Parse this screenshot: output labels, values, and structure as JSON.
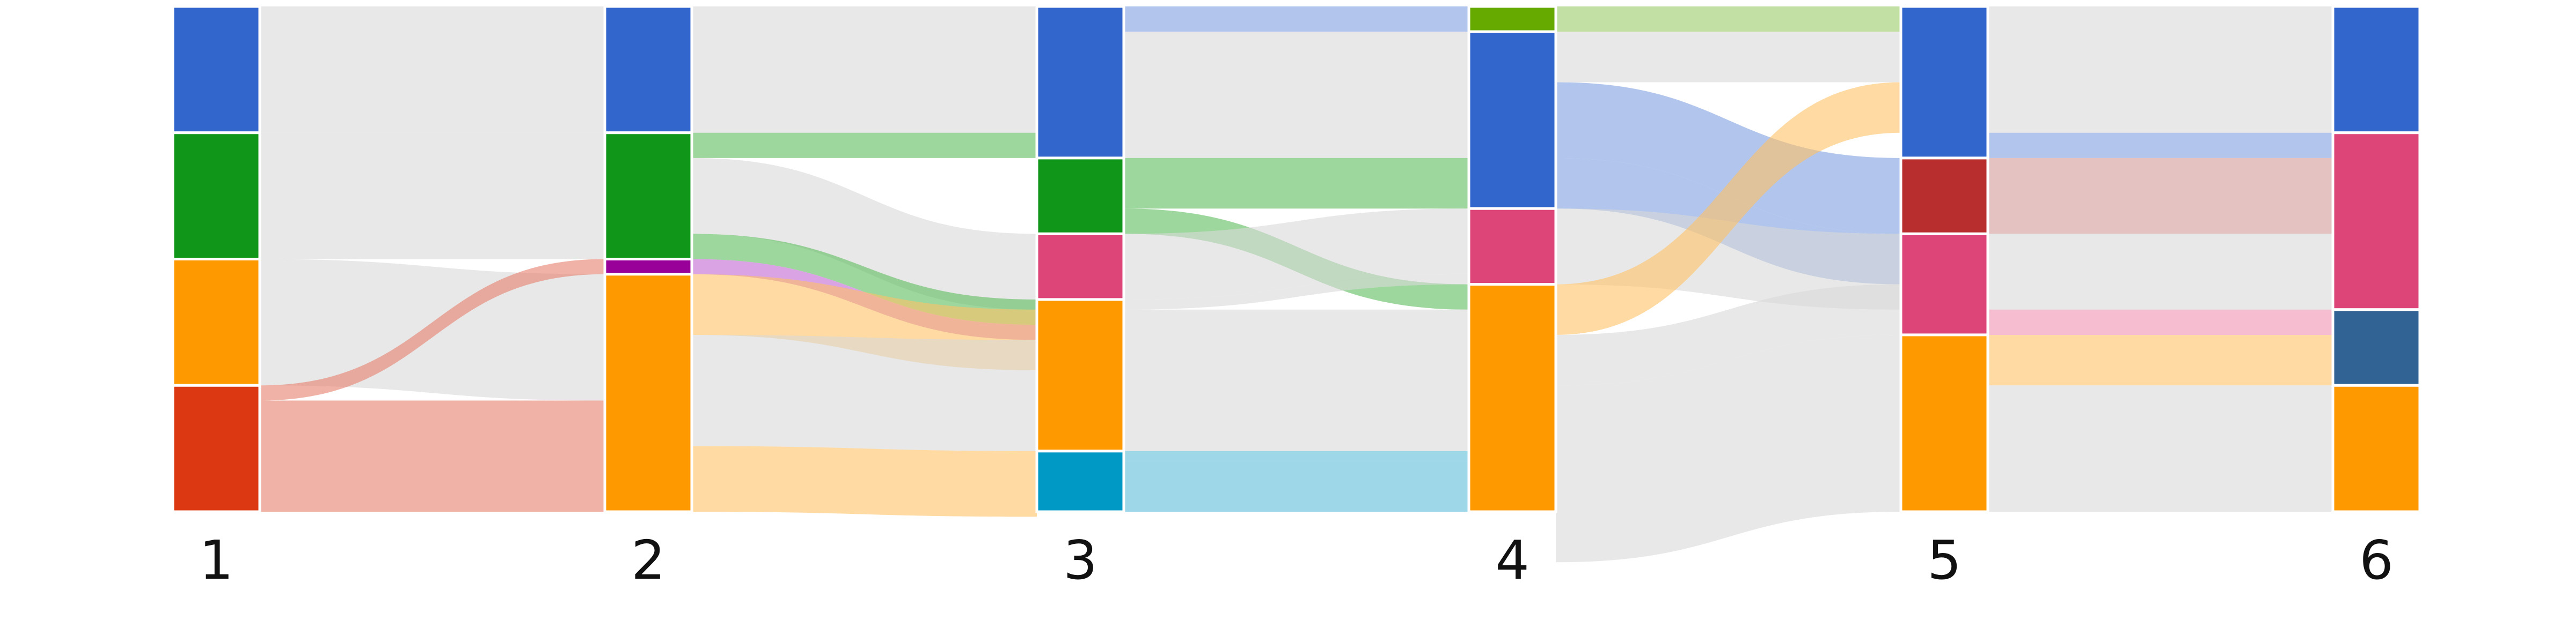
{
  "chart_data": {
    "type": "sankey",
    "title": "",
    "stages": [
      "1",
      "2",
      "3",
      "4",
      "5",
      "6"
    ],
    "grid": false,
    "legend": "none",
    "nodes": [
      [
        {
          "id": "s1n1",
          "color": "#3366cc",
          "value": 25
        },
        {
          "id": "s1n2",
          "color": "#109618",
          "value": 25
        },
        {
          "id": "s1n3",
          "color": "#ff9900",
          "value": 25
        },
        {
          "id": "s1n4",
          "color": "#dc3912",
          "value": 25
        }
      ],
      [
        {
          "id": "s2n1",
          "color": "#3366cc",
          "value": 25
        },
        {
          "id": "s2n2",
          "color": "#109618",
          "value": 25
        },
        {
          "id": "s2n3",
          "color": "#990099",
          "value": 3
        },
        {
          "id": "s2n4",
          "color": "#ff9900",
          "value": 47
        }
      ],
      [
        {
          "id": "s3n1",
          "color": "#3366cc",
          "value": 30
        },
        {
          "id": "s3n2",
          "color": "#109618",
          "value": 15
        },
        {
          "id": "s3n3",
          "color": "#dd4477",
          "value": 13
        },
        {
          "id": "s3n4",
          "color": "#ff9900",
          "value": 30
        },
        {
          "id": "s3n5",
          "color": "#0099c6",
          "value": 12
        }
      ],
      [
        {
          "id": "s4n1",
          "color": "#66aa00",
          "value": 5
        },
        {
          "id": "s4n2",
          "color": "#3366cc",
          "value": 35
        },
        {
          "id": "s4n3",
          "color": "#dd4477",
          "value": 15
        },
        {
          "id": "s4n4",
          "color": "#ff9900",
          "value": 45
        }
      ],
      [
        {
          "id": "s5n1",
          "color": "#3366cc",
          "value": 30
        },
        {
          "id": "s5n2",
          "color": "#b82e2e",
          "value": 15
        },
        {
          "id": "s5n3",
          "color": "#dd4477",
          "value": 20
        },
        {
          "id": "s5n4",
          "color": "#ff9900",
          "value": 35
        }
      ],
      [
        {
          "id": "s6n1",
          "color": "#3366cc",
          "value": 25
        },
        {
          "id": "s6n2",
          "color": "#dd4477",
          "value": 35
        },
        {
          "id": "s6n3",
          "color": "#316395",
          "value": 15
        },
        {
          "id": "s6n4",
          "color": "#ff9900",
          "value": 25
        }
      ]
    ],
    "links": [
      {
        "stage": 0,
        "from": 0,
        "to": 0,
        "value": 25,
        "color": "#d9d9d9"
      },
      {
        "stage": 0,
        "from": 1,
        "to": 1,
        "value": 25,
        "color": "#d9d9d9"
      },
      {
        "stage": 0,
        "from": 2,
        "to": 3,
        "value": 25,
        "color": "#d9d9d9"
      },
      {
        "stage": 0,
        "from": 3,
        "to": 2,
        "value": 3,
        "color": "#e67e6a"
      },
      {
        "stage": 0,
        "from": 3,
        "to": 3,
        "value": 22,
        "color": "#e67e6a"
      },
      {
        "stage": 1,
        "from": 0,
        "to": 0,
        "value": 25,
        "color": "#d9d9d9"
      },
      {
        "stage": 1,
        "from": 1,
        "to": 0,
        "value": 5,
        "color": "#5cbd5c"
      },
      {
        "stage": 1,
        "from": 1,
        "to": 2,
        "value": 15,
        "color": "#d9d9d9"
      },
      {
        "stage": 1,
        "from": 1,
        "to": 3,
        "value": 5,
        "color": "#5cbd5c"
      },
      {
        "stage": 1,
        "from": 2,
        "to": 3,
        "value": 3,
        "color": "#c266d1"
      },
      {
        "stage": 1,
        "from": 3,
        "to": 2,
        "value": 12,
        "color": "#ffc266"
      },
      {
        "stage": 1,
        "from": 3,
        "to": 3,
        "value": 22,
        "color": "#d9d9d9"
      },
      {
        "stage": 1,
        "from": 3,
        "to": 4,
        "value": 13,
        "color": "#ffc266"
      },
      {
        "stage": 2,
        "from": 0,
        "to": 0,
        "value": 5,
        "color": "#7f9fe0"
      },
      {
        "stage": 2,
        "from": 0,
        "to": 1,
        "value": 25,
        "color": "#d9d9d9"
      },
      {
        "stage": 2,
        "from": 1,
        "to": 1,
        "value": 10,
        "color": "#5cbd5c"
      },
      {
        "stage": 2,
        "from": 1,
        "to": 3,
        "value": 5,
        "color": "#5cbd5c"
      },
      {
        "stage": 2,
        "from": 2,
        "to": 2,
        "value": 13,
        "color": "#d9d9d9"
      },
      {
        "stage": 2,
        "from": 3,
        "to": 2,
        "value": 2,
        "color": "#d9d9d9"
      },
      {
        "stage": 2,
        "from": 3,
        "to": 3,
        "value": 28,
        "color": "#d9d9d9"
      },
      {
        "stage": 2,
        "from": 4,
        "to": 3,
        "value": 2,
        "color": "#5bbcd9"
      },
      {
        "stage": 2,
        "from": 4,
        "to": 3,
        "value": 10,
        "color": "#5bbcd9"
      },
      {
        "stage": 3,
        "from": 0,
        "to": 0,
        "value": 5,
        "color": "#99cc66"
      },
      {
        "stage": 3,
        "from": 1,
        "to": 0,
        "value": 10,
        "color": "#d9d9d9"
      },
      {
        "stage": 3,
        "from": 1,
        "to": 1,
        "value": 15,
        "color": "#7f9fe0"
      },
      {
        "stage": 3,
        "from": 1,
        "to": 2,
        "value": 10,
        "color": "#7f9fe0"
      },
      {
        "stage": 3,
        "from": 2,
        "to": 1,
        "value": 15,
        "color": "#d9d9d9"
      },
      {
        "stage": 3,
        "from": 3,
        "to": 0,
        "value": 10,
        "color": "#ffc266"
      },
      {
        "stage": 3,
        "from": 3,
        "to": 2,
        "value": 10,
        "color": "#d9d9d9"
      },
      {
        "stage": 3,
        "from": 3,
        "to": 3,
        "value": 35,
        "color": "#d9d9d9"
      },
      {
        "stage": 4,
        "from": 0,
        "to": 0,
        "value": 25,
        "color": "#d9d9d9"
      },
      {
        "stage": 4,
        "from": 0,
        "to": 1,
        "value": 5,
        "color": "#7f9fe0"
      },
      {
        "stage": 4,
        "from": 1,
        "to": 1,
        "value": 15,
        "color": "#d39a9a"
      },
      {
        "stage": 4,
        "from": 2,
        "to": 1,
        "value": 15,
        "color": "#d9d9d9"
      },
      {
        "stage": 4,
        "from": 2,
        "to": 2,
        "value": 5,
        "color": "#f08fb0"
      },
      {
        "stage": 4,
        "from": 3,
        "to": 2,
        "value": 10,
        "color": "#ffc266"
      },
      {
        "stage": 4,
        "from": 3,
        "to": 3,
        "value": 25,
        "color": "#d9d9d9"
      }
    ]
  }
}
